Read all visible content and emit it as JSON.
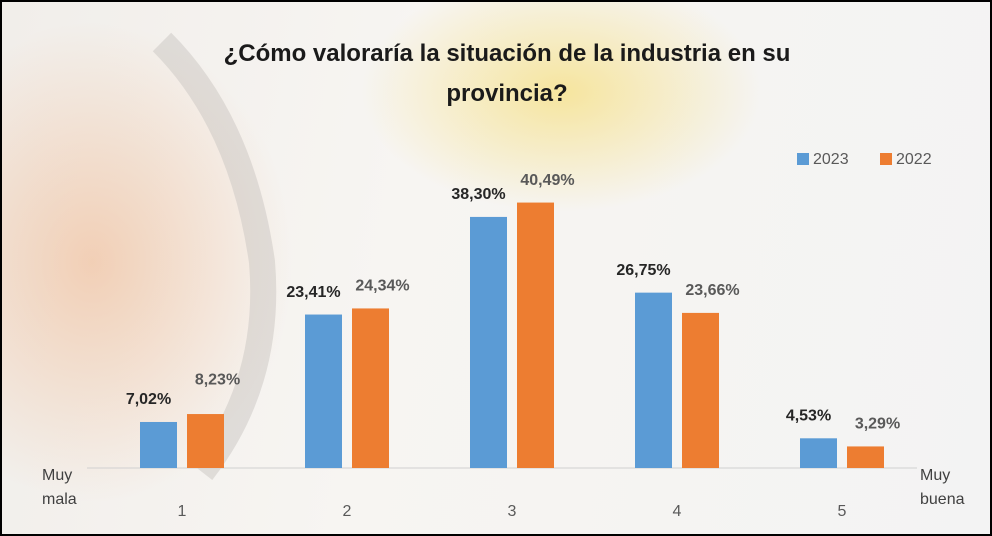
{
  "chart_data": {
    "type": "bar",
    "title": "¿Cómo valoraría la situación de la industria en su provincia?",
    "categories": [
      "1",
      "2",
      "3",
      "4",
      "5"
    ],
    "series": [
      {
        "name": "2023",
        "color": "#5b9bd5",
        "values": [
          7.02,
          23.41,
          38.3,
          26.75,
          4.53
        ],
        "value_labels": [
          "7,02%",
          "23,41%",
          "38,30%",
          "26,75%",
          "4,53%"
        ]
      },
      {
        "name": "2022",
        "color": "#ed7d31",
        "values": [
          8.23,
          24.34,
          40.49,
          23.66,
          3.29
        ],
        "value_labels": [
          "8,23%",
          "24,34%",
          "40,49%",
          "23,66%",
          "3,29%"
        ]
      }
    ],
    "annotations": [
      "Muy mala",
      "Muy buena"
    ],
    "ylim": [
      0,
      45
    ],
    "legend": "top-right"
  }
}
